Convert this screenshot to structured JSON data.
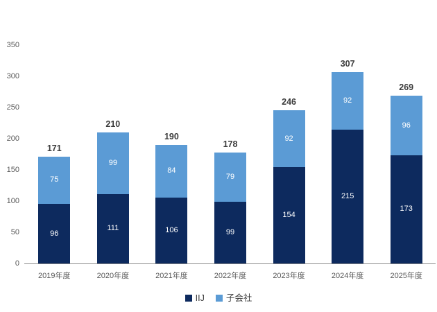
{
  "chart_data": {
    "type": "bar",
    "stacked": true,
    "title": "",
    "xlabel": "",
    "ylabel": "",
    "categories": [
      "2019年度",
      "2020年度",
      "2021年度",
      "2022年度",
      "2023年度",
      "2024年度",
      "2025年度"
    ],
    "series": [
      {
        "name": "IIJ",
        "color": "#0d2a5e",
        "values": [
          96,
          111,
          106,
          99,
          154,
          215,
          173
        ]
      },
      {
        "name": "子会社",
        "color": "#5b9bd5",
        "values": [
          75,
          99,
          84,
          79,
          92,
          92,
          96
        ]
      }
    ],
    "totals": [
      171,
      210,
      190,
      178,
      246,
      307,
      269
    ],
    "ylim": [
      0,
      350
    ],
    "yticks": [
      0,
      50,
      100,
      150,
      200,
      250,
      300,
      350
    ],
    "grid": false,
    "legend_position": "bottom",
    "colors": {
      "axis_line": "#898989",
      "tick_label": "#595959",
      "total_label": "#3b3b3b",
      "bar_value_label": "#ffffff",
      "legend_text": "#3a3a3a",
      "background": "#ffffff"
    }
  }
}
